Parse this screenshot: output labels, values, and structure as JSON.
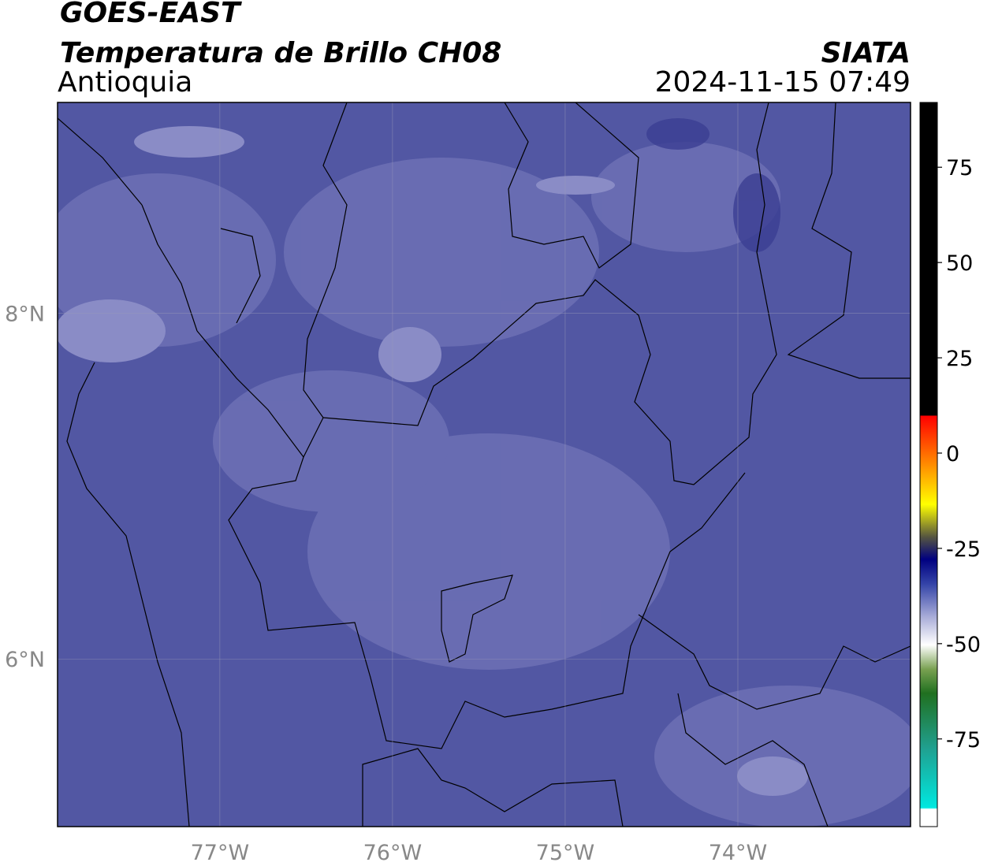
{
  "header": {
    "title": "GOES-EAST",
    "subtitle": "Temperatura de Brillo CH08",
    "region": "Antioquia",
    "source": "SIATA",
    "datetime": "2024-11-15 07:49"
  },
  "map": {
    "xlim": [
      -77.94,
      -73.0
    ],
    "ylim": [
      5.03,
      9.22
    ],
    "xticks": [
      {
        "value": -77,
        "label": "77°W"
      },
      {
        "value": -76,
        "label": "76°W"
      },
      {
        "value": -75,
        "label": "75°W"
      },
      {
        "value": -74,
        "label": "74°W"
      }
    ],
    "yticks": [
      {
        "value": 8,
        "label": "8°N"
      },
      {
        "value": 6,
        "label": "6°N"
      }
    ],
    "grid": true
  },
  "colorbar": {
    "lim": [
      -98,
      92
    ],
    "ticks": [
      75,
      50,
      25,
      0,
      -25,
      -50,
      -75
    ]
  }
}
